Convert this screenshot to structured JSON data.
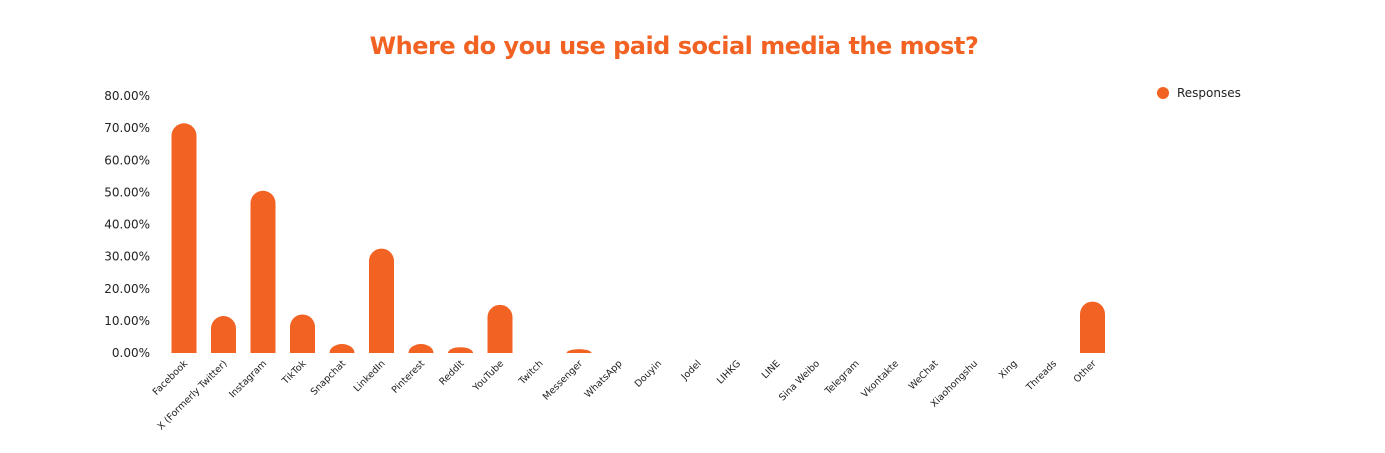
{
  "chart_data": {
    "type": "bar",
    "title": "Where do you use paid social media the most?",
    "xlabel": "",
    "ylabel": "",
    "ylim": [
      0,
      80
    ],
    "yticks": [
      "0.00%",
      "10.00%",
      "20.00%",
      "30.00%",
      "40.00%",
      "50.00%",
      "60.00%",
      "70.00%",
      "80.00%"
    ],
    "grid": false,
    "legend_position": "top-right",
    "bar_color": "#f26223",
    "title_color": "#f26223",
    "categories": [
      "Facebook",
      "X (Formerly Twitter)",
      "Instagram",
      "TikTok",
      "Snapchat",
      "LinkedIn",
      "Pinterest",
      "Reddit",
      "YouTube",
      "Twitch",
      "Messenger",
      "WhatsApp",
      "Douyin",
      "Jodel",
      "LIHKG",
      "LINE",
      "Sina Weibo",
      "Telegram",
      "Vkontakte",
      "WeChat",
      "Xiaohongshu",
      "Xing",
      "Threads",
      "Other"
    ],
    "series": [
      {
        "name": "Responses",
        "values": [
          71.5,
          11.5,
          50.5,
          12,
          2.8,
          32.5,
          2.8,
          1.8,
          15,
          0,
          1.2,
          0,
          0,
          0,
          0,
          0,
          0,
          0,
          0,
          0,
          0,
          0,
          0,
          16
        ]
      }
    ]
  }
}
